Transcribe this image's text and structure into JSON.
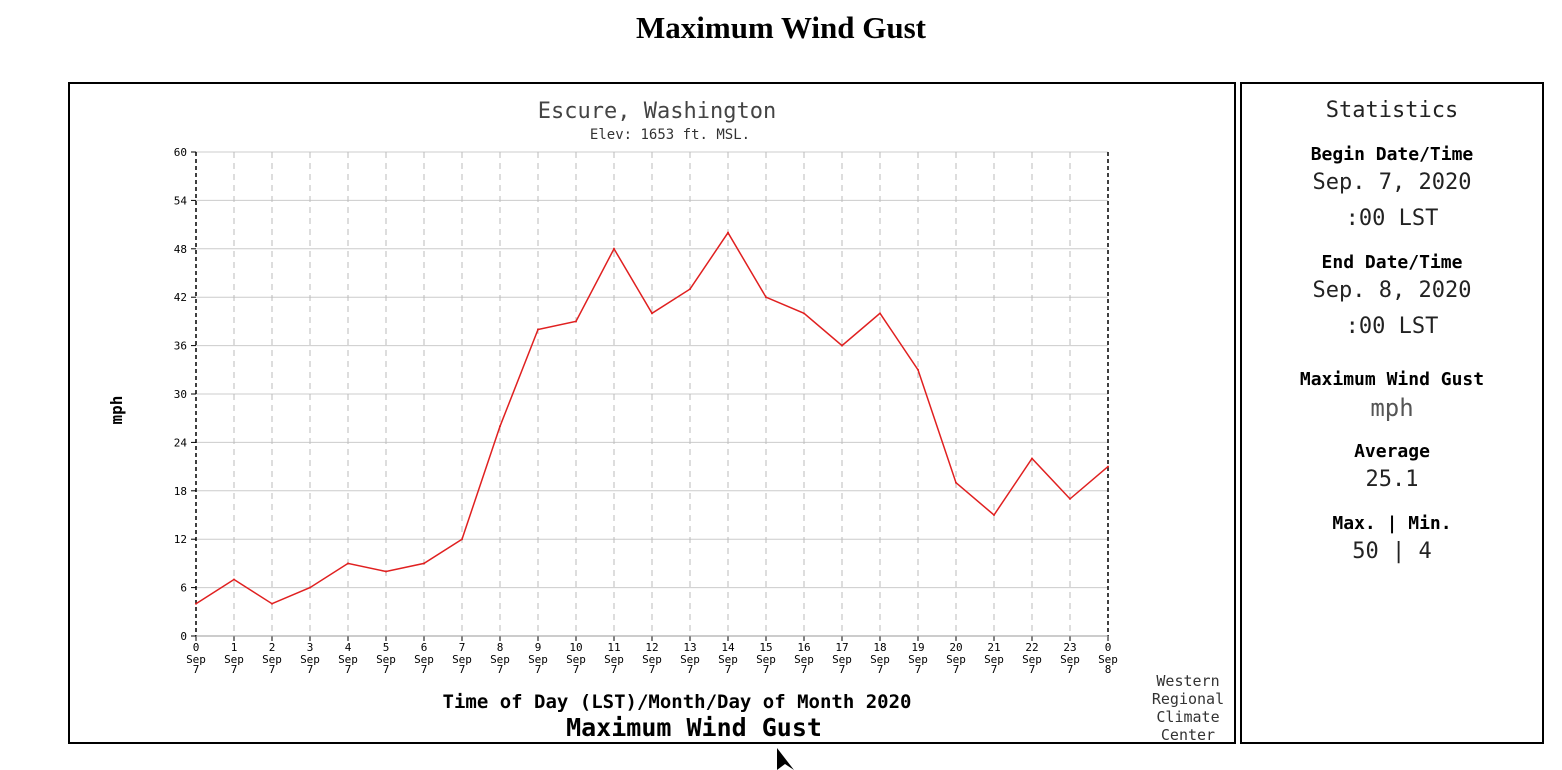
{
  "page": {
    "title": "Maximum Wind Gust"
  },
  "chart_data": {
    "type": "line",
    "title": "Escure, Washington",
    "subtitle": "Elev: 1653 ft. MSL.",
    "xlabel": "Time of Day (LST)/Month/Day of Month 2020",
    "ylabel": "mph",
    "bottom_title": "Maximum Wind Gust",
    "credit": [
      "Western",
      "Regional",
      "Climate",
      "Center"
    ],
    "ylim": [
      0,
      60
    ],
    "yticks": [
      0,
      6,
      12,
      18,
      24,
      30,
      36,
      42,
      48,
      54,
      60
    ],
    "grid": true,
    "line_color": "#e02020",
    "x_hour_labels": [
      "0",
      "1",
      "2",
      "3",
      "4",
      "5",
      "6",
      "7",
      "8",
      "9",
      "10",
      "11",
      "12",
      "13",
      "14",
      "15",
      "16",
      "17",
      "18",
      "19",
      "20",
      "21",
      "22",
      "23",
      "0"
    ],
    "x_month_labels": [
      "Sep",
      "Sep",
      "Sep",
      "Sep",
      "Sep",
      "Sep",
      "Sep",
      "Sep",
      "Sep",
      "Sep",
      "Sep",
      "Sep",
      "Sep",
      "Sep",
      "Sep",
      "Sep",
      "Sep",
      "Sep",
      "Sep",
      "Sep",
      "Sep",
      "Sep",
      "Sep",
      "Sep",
      "Sep"
    ],
    "x_day_labels": [
      "7",
      "7",
      "7",
      "7",
      "7",
      "7",
      "7",
      "7",
      "7",
      "7",
      "7",
      "7",
      "7",
      "7",
      "7",
      "7",
      "7",
      "7",
      "7",
      "7",
      "7",
      "7",
      "7",
      "7",
      "8"
    ],
    "values": [
      4,
      7,
      4,
      6,
      9,
      8,
      9,
      12,
      26,
      38,
      39,
      48,
      40,
      43,
      50,
      42,
      40,
      36,
      40,
      33,
      19,
      15,
      22,
      17,
      21
    ]
  },
  "stats": {
    "title": "Statistics",
    "begin_label": "Begin Date/Time",
    "begin_date": "Sep. 7, 2020",
    "begin_time": ":00 LST",
    "end_label": "End Date/Time",
    "end_date": "Sep. 8, 2020",
    "end_time": ":00 LST",
    "element_label": "Maximum Wind Gust",
    "units": "mph",
    "average_label": "Average",
    "average_value": "25.1",
    "maxmin_label": "Max. | Min.",
    "maxmin_value": "50 | 4"
  }
}
